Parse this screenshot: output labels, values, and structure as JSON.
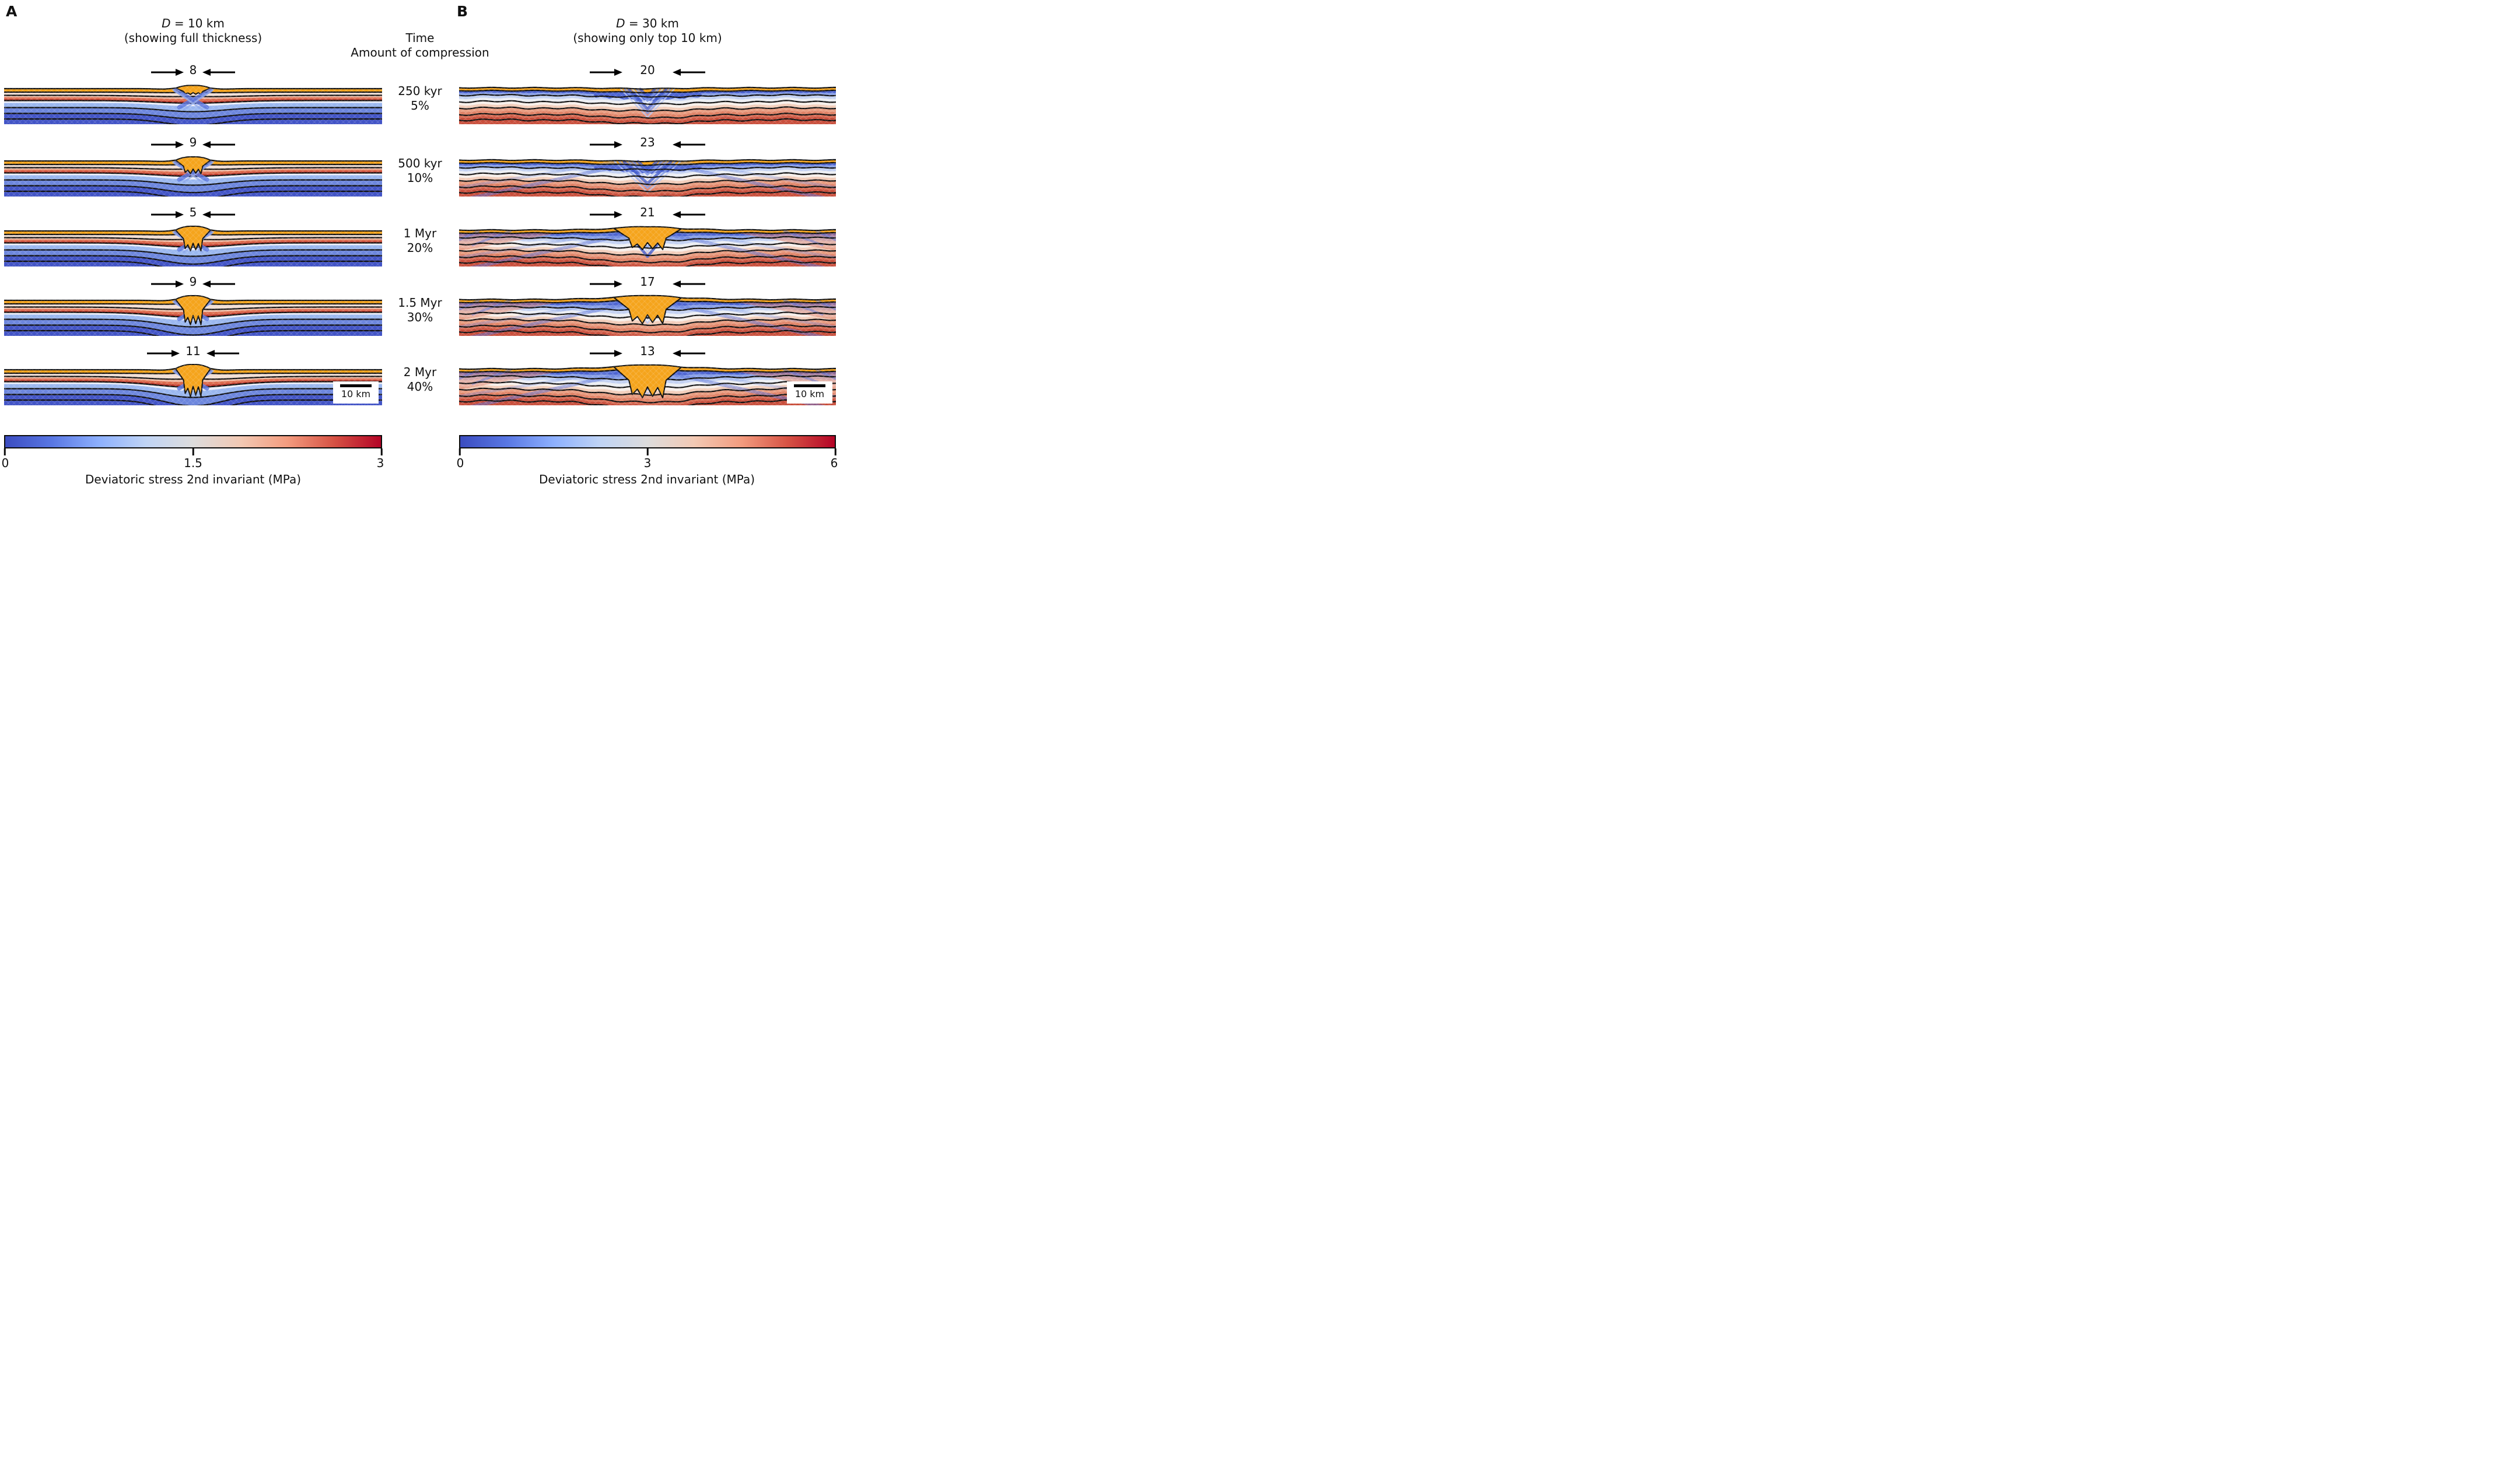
{
  "fig": {
    "panelA": {
      "label": "A",
      "title_d": "D",
      "title_eq": " = 10 km",
      "subtitle": "(showing full thickness)"
    },
    "panelB": {
      "label": "B",
      "title_d": "D",
      "title_eq": " = 30 km",
      "subtitle": "(showing only top 10 km)"
    },
    "center_header": {
      "line1": "Time",
      "line2": "Amount of compression"
    },
    "rows": [
      {
        "time": "250 kyr",
        "compression": "5%",
        "a_marker": "8",
        "b_marker": "20"
      },
      {
        "time": "500 kyr",
        "compression": "10%",
        "a_marker": "9",
        "b_marker": "23"
      },
      {
        "time": "1 Myr",
        "compression": "20%",
        "a_marker": "5",
        "b_marker": "21"
      },
      {
        "time": "1.5 Myr",
        "compression": "30%",
        "a_marker": "9",
        "b_marker": "17"
      },
      {
        "time": "2 Myr",
        "compression": "40%",
        "a_marker": "11",
        "b_marker": "13"
      }
    ],
    "scalebar_label": "10 km",
    "colorbarA": {
      "tick0": "0",
      "tick1": "1.5",
      "tick2": "3",
      "label": "Deviatoric stress 2nd invariant (MPa)"
    },
    "colorbarB": {
      "tick0": "0",
      "tick1": "3",
      "tick2": "6",
      "label": "Deviatoric stress 2nd invariant (MPa)"
    },
    "colors": {
      "orange": "#F5A41C",
      "deep_blue": "#4254C6",
      "mid_blue": "#6C86DD",
      "light_blue": "#9AB7EF",
      "salmon": "#DC6C4E",
      "red": "#C23A2B",
      "contour": "#101010",
      "colormap_stops": [
        "#3B4CC0",
        "#5977E3",
        "#8DB0FE",
        "#C0D4F5",
        "#DDDCDC",
        "#F2C9B4",
        "#F39C7F",
        "#D65244",
        "#B40426"
      ]
    }
  },
  "chart_data": [
    {
      "type": "heatmap",
      "panel": "A",
      "title": "D = 10 km (showing full thickness)",
      "quantity": "Deviatoric stress 2nd invariant (MPa)",
      "colormap": "coolwarm (blue-gray-red)",
      "color_range": [
        0,
        3
      ],
      "colorbar_ticks": [
        0,
        1.5,
        3
      ],
      "scale_bar_km": 10,
      "snapshots": [
        {
          "time": "250 kyr",
          "compression_pct": 5,
          "marker_value": 8
        },
        {
          "time": "500 kyr",
          "compression_pct": 10,
          "marker_value": 9
        },
        {
          "time": "1 Myr",
          "compression_pct": 20,
          "marker_value": 5
        },
        {
          "time": "1.5 Myr",
          "compression_pct": 30,
          "marker_value": 9
        },
        {
          "time": "2 Myr",
          "compression_pct": 40,
          "marker_value": 11
        }
      ]
    },
    {
      "type": "heatmap",
      "panel": "B",
      "title": "D = 30 km (showing only top 10 km)",
      "quantity": "Deviatoric stress 2nd invariant (MPa)",
      "colormap": "coolwarm (blue-gray-red)",
      "color_range": [
        0,
        6
      ],
      "colorbar_ticks": [
        0,
        3,
        6
      ],
      "scale_bar_km": 10,
      "snapshots": [
        {
          "time": "250 kyr",
          "compression_pct": 5,
          "marker_value": 20
        },
        {
          "time": "500 kyr",
          "compression_pct": 10,
          "marker_value": 23
        },
        {
          "time": "1 Myr",
          "compression_pct": 20,
          "marker_value": 21
        },
        {
          "time": "1.5 Myr",
          "compression_pct": 30,
          "marker_value": 17
        },
        {
          "time": "2 Myr",
          "compression_pct": 40,
          "marker_value": 13
        }
      ]
    }
  ]
}
